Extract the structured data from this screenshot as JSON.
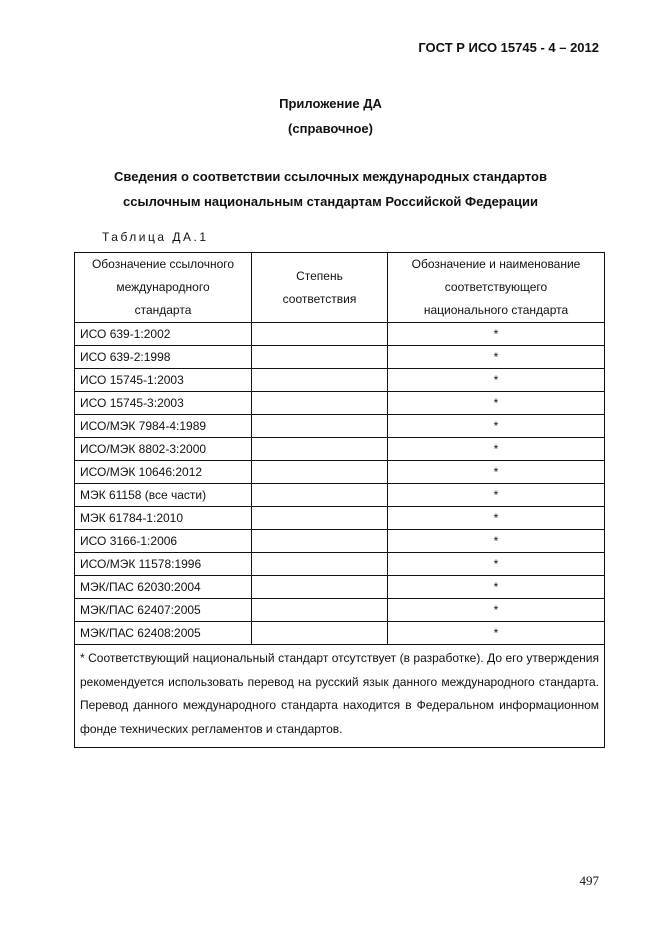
{
  "header": "ГОСТ Р ИСО 15745 - 4 – 2012",
  "appendix": {
    "title": "Приложение  ДА",
    "subtitle": "(справочное)"
  },
  "heading": {
    "line1": "Сведения о соответствии ссылочных международных стандартов",
    "line2": "ссылочным национальным стандартам Российской Федерации"
  },
  "table": {
    "caption": "Таблица ДА.1",
    "columns": [
      [
        "Обозначение ссылочного",
        "международного",
        "стандарта"
      ],
      [
        "Степень",
        "соответствия"
      ],
      [
        "Обозначение и наименование",
        "соответствующего",
        "национального стандарта"
      ]
    ],
    "rows": [
      [
        "ИСО 639-1:2002",
        "",
        "*"
      ],
      [
        "ИСО 639-2:1998",
        "",
        "*"
      ],
      [
        "ИСО 15745-1:2003",
        "",
        "*"
      ],
      [
        "ИСО 15745-3:2003",
        "",
        "*"
      ],
      [
        "ИСО/МЭК 7984-4:1989",
        "",
        "*"
      ],
      [
        "ИСО/МЭК 8802-3:2000",
        "",
        "*"
      ],
      [
        "ИСО/МЭК 10646:2012",
        "",
        "*"
      ],
      [
        "МЭК 61158 (все части)",
        "",
        "*"
      ],
      [
        "МЭК 61784-1:2010",
        "",
        "*"
      ],
      [
        "ИСО 3166-1:2006",
        "",
        "*"
      ],
      [
        "ИСО/МЭК 11578:1996",
        "",
        "*"
      ],
      [
        "МЭК/ПАС 62030:2004",
        "",
        "*"
      ],
      [
        "МЭК/ПАС 62407:2005",
        "",
        "*"
      ],
      [
        "МЭК/ПАС 62408:2005",
        "",
        "*"
      ]
    ],
    "footnote": " * Соответствующий национальный стандарт отсутствует (в разработке). До его утверждения рекомендуется использовать перевод на русский язык данного международного стандарта. Перевод данного международного стандарта находится в Федеральном информационном  фонде технических регламентов и стандартов."
  },
  "page_number": "497"
}
